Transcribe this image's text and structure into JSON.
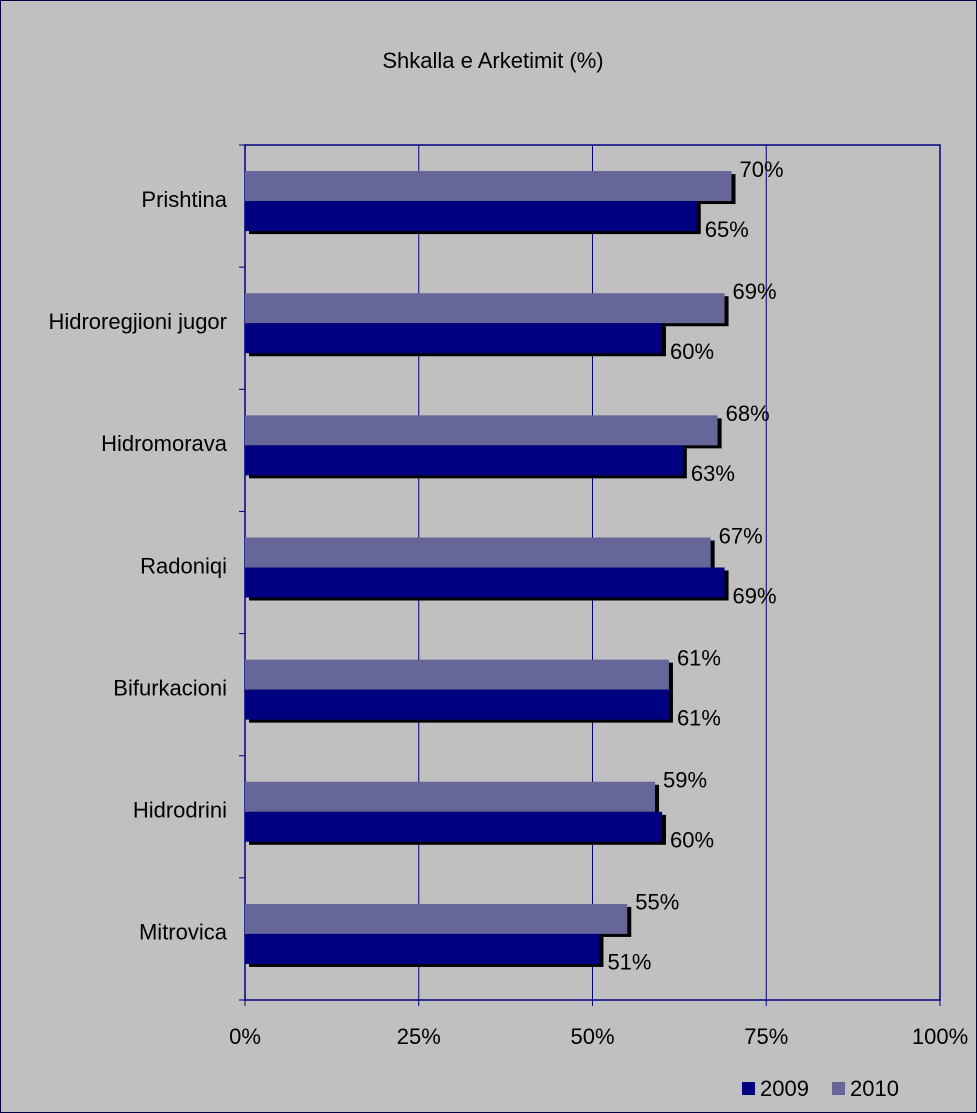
{
  "chart_data": {
    "type": "bar",
    "orientation": "horizontal",
    "title": "Shkalla e Arketimit (%)",
    "categories": [
      "Prishtina",
      "Hidroregjioni jugor",
      "Hidromorava",
      "Radoniqi",
      "Bifurkacioni",
      "Hidrodrini",
      "Mitrovica"
    ],
    "series": [
      {
        "name": "2009",
        "color": "#000080",
        "values": [
          65,
          60,
          63,
          69,
          61,
          60,
          51
        ],
        "value_labels": [
          "65%",
          "60%",
          "63%",
          "69%",
          "61%",
          "60%",
          "51%"
        ]
      },
      {
        "name": "2010",
        "color": "#666699",
        "values": [
          70,
          69,
          68,
          67,
          61,
          59,
          55
        ],
        "value_labels": [
          "70%",
          "69%",
          "68%",
          "67%",
          "61%",
          "59%",
          "55%"
        ]
      }
    ],
    "xlim": [
      0,
      100
    ],
    "xticks": [
      {
        "value": 0,
        "label": "0%"
      },
      {
        "value": 25,
        "label": "25%"
      },
      {
        "value": 50,
        "label": "50%"
      },
      {
        "value": 75,
        "label": "75%"
      },
      {
        "value": 100,
        "label": "100%"
      }
    ],
    "grid": true,
    "legend": "bottom-right"
  }
}
